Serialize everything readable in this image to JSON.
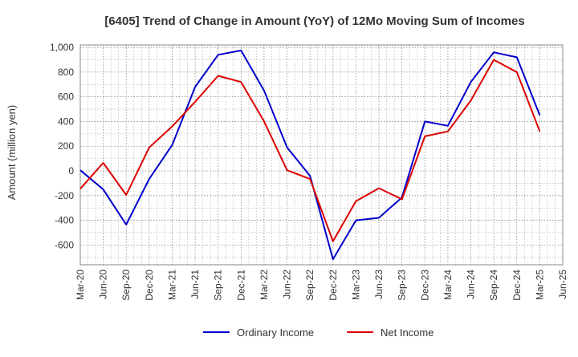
{
  "chart_data": {
    "type": "line",
    "title": "[6405]  Trend of Change in Amount (YoY) of 12Mo Moving Sum of Incomes",
    "xlabel": "",
    "ylabel": "Amount (million yen)",
    "ylim": [
      -760,
      1020
    ],
    "yticks": [
      -600,
      -400,
      -200,
      0,
      200,
      400,
      600,
      800,
      1000
    ],
    "ytick_labels": [
      "-600",
      "-400",
      "-200",
      "0",
      "200",
      "400",
      "600",
      "800",
      "1,000"
    ],
    "x_tick_labels": [
      "Mar-20",
      "Jun-20",
      "Sep-20",
      "Dec-20",
      "Mar-21",
      "Jun-21",
      "Sep-21",
      "Dec-21",
      "Mar-22",
      "Jun-22",
      "Sep-22",
      "Dec-22",
      "Mar-23",
      "Jun-23",
      "Sep-23",
      "Dec-23",
      "Mar-24",
      "Jun-24",
      "Sep-24",
      "Dec-24",
      "Mar-25",
      "Jun-25"
    ],
    "grid": true,
    "legend": "bottom",
    "series": [
      {
        "name": "Ordinary Income",
        "color": "#0000cc",
        "values": [
          5,
          -150,
          -435,
          -65,
          210,
          680,
          940,
          975,
          650,
          190,
          -40,
          -715,
          -400,
          -380,
          -215,
          400,
          365,
          720,
          960,
          920,
          450
        ]
      },
      {
        "name": "Net Income",
        "color": "#dd0000",
        "values": [
          -145,
          65,
          -195,
          190,
          360,
          560,
          770,
          720,
          400,
          5,
          -65,
          -570,
          -245,
          -140,
          -230,
          280,
          320,
          570,
          900,
          800,
          320
        ]
      }
    ]
  }
}
